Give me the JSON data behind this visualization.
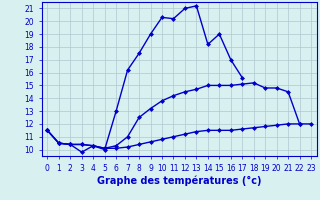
{
  "xlabel": "Graphe des températures (°c)",
  "hours": [
    0,
    1,
    2,
    3,
    4,
    5,
    6,
    7,
    8,
    9,
    10,
    11,
    12,
    13,
    14,
    15,
    16,
    17,
    18,
    19,
    20,
    21,
    22,
    23
  ],
  "line1": [
    11.5,
    10.5,
    10.4,
    9.8,
    10.3,
    10.0,
    13.0,
    16.2,
    17.5,
    19.0,
    20.3,
    20.2,
    21.0,
    21.2,
    18.2,
    19.0,
    17.0,
    15.6,
    null,
    null,
    null,
    null,
    null,
    null
  ],
  "line2": [
    11.5,
    10.5,
    10.4,
    10.4,
    10.3,
    10.1,
    10.3,
    11.0,
    12.5,
    13.2,
    13.8,
    14.2,
    14.5,
    14.7,
    15.0,
    15.0,
    15.0,
    15.1,
    15.2,
    14.8,
    14.8,
    14.5,
    12.0,
    null
  ],
  "line3": [
    11.5,
    10.5,
    10.4,
    10.4,
    10.3,
    10.1,
    10.1,
    10.2,
    10.4,
    10.6,
    10.8,
    11.0,
    11.2,
    11.4,
    11.5,
    11.5,
    11.5,
    11.6,
    11.7,
    11.8,
    11.9,
    12.0,
    12.0,
    12.0
  ],
  "line_color": "#0000cc",
  "bg_color": "#d8f0f0",
  "grid_color": "#b0c8d0",
  "ylim": [
    9.5,
    21.5
  ],
  "xlim": [
    -0.5,
    23.5
  ],
  "yticks": [
    10,
    11,
    12,
    13,
    14,
    15,
    16,
    17,
    18,
    19,
    20,
    21
  ],
  "xticks": [
    0,
    1,
    2,
    3,
    4,
    5,
    6,
    7,
    8,
    9,
    10,
    11,
    12,
    13,
    14,
    15,
    16,
    17,
    18,
    19,
    20,
    21,
    22,
    23
  ],
  "marker": "D",
  "marker_size": 2.0,
  "line_width": 1.0,
  "tick_fontsize": 5.5,
  "xlabel_fontsize": 7.0
}
